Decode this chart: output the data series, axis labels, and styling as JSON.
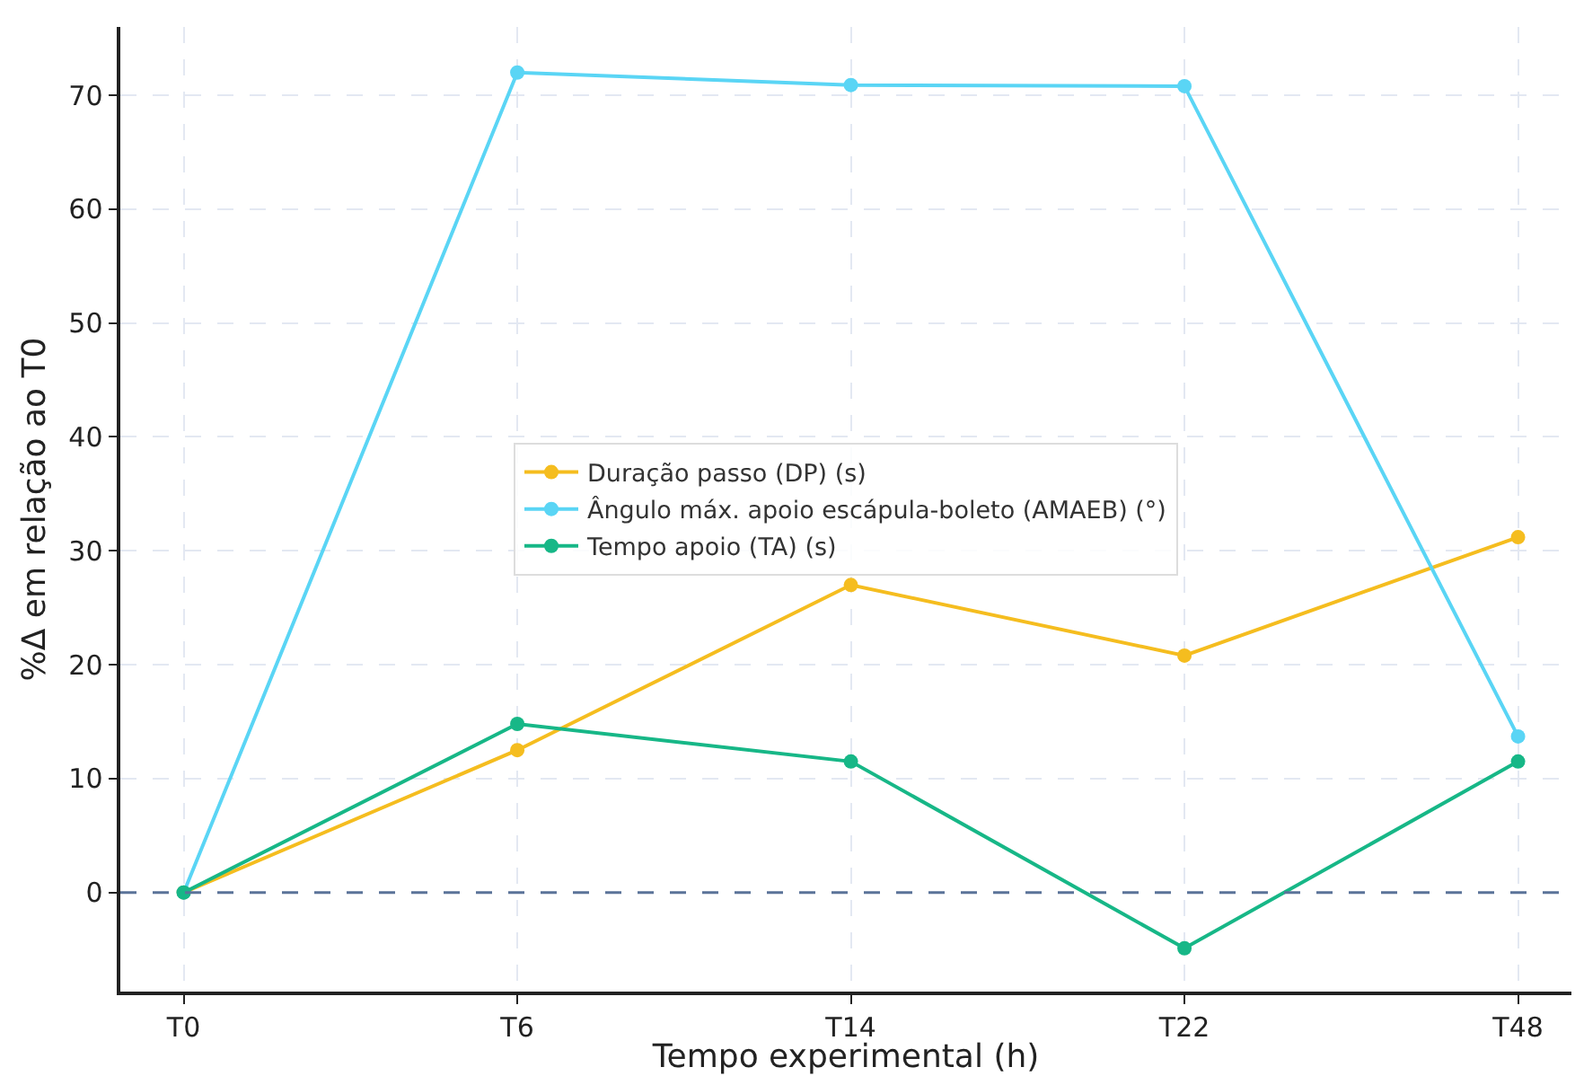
{
  "chart_data": {
    "type": "line",
    "categories": [
      "T0",
      "T6",
      "T14",
      "T22",
      "T48"
    ],
    "series": [
      {
        "name": "Duração passo (DP) (s)",
        "color": "#f5bd1f",
        "values": [
          0,
          12.5,
          27.0,
          20.8,
          31.2
        ]
      },
      {
        "name": "Ângulo máx. apoio escápula-boleto (AMAEB) (°)",
        "color": "#5ad5f5",
        "values": [
          0,
          72.0,
          70.9,
          70.8,
          13.7
        ]
      },
      {
        "name": "Tempo apoio (TA) (s)",
        "color": "#17b787",
        "values": [
          0,
          14.8,
          11.5,
          -4.9,
          11.5
        ]
      }
    ],
    "xlabel": "Tempo experimental (h)",
    "ylabel": "%Δ em relação ao T0",
    "ylim": [
      -8.7,
      76
    ],
    "yticks": [
      0,
      10,
      20,
      30,
      40,
      50,
      60,
      70
    ],
    "ref_lines": [
      {
        "axis": "y",
        "value": 0,
        "color": "#5b7399",
        "line_style": "dashed"
      }
    ],
    "grid": true,
    "legend": "center",
    "marker": "circle",
    "line_style": "solid"
  }
}
